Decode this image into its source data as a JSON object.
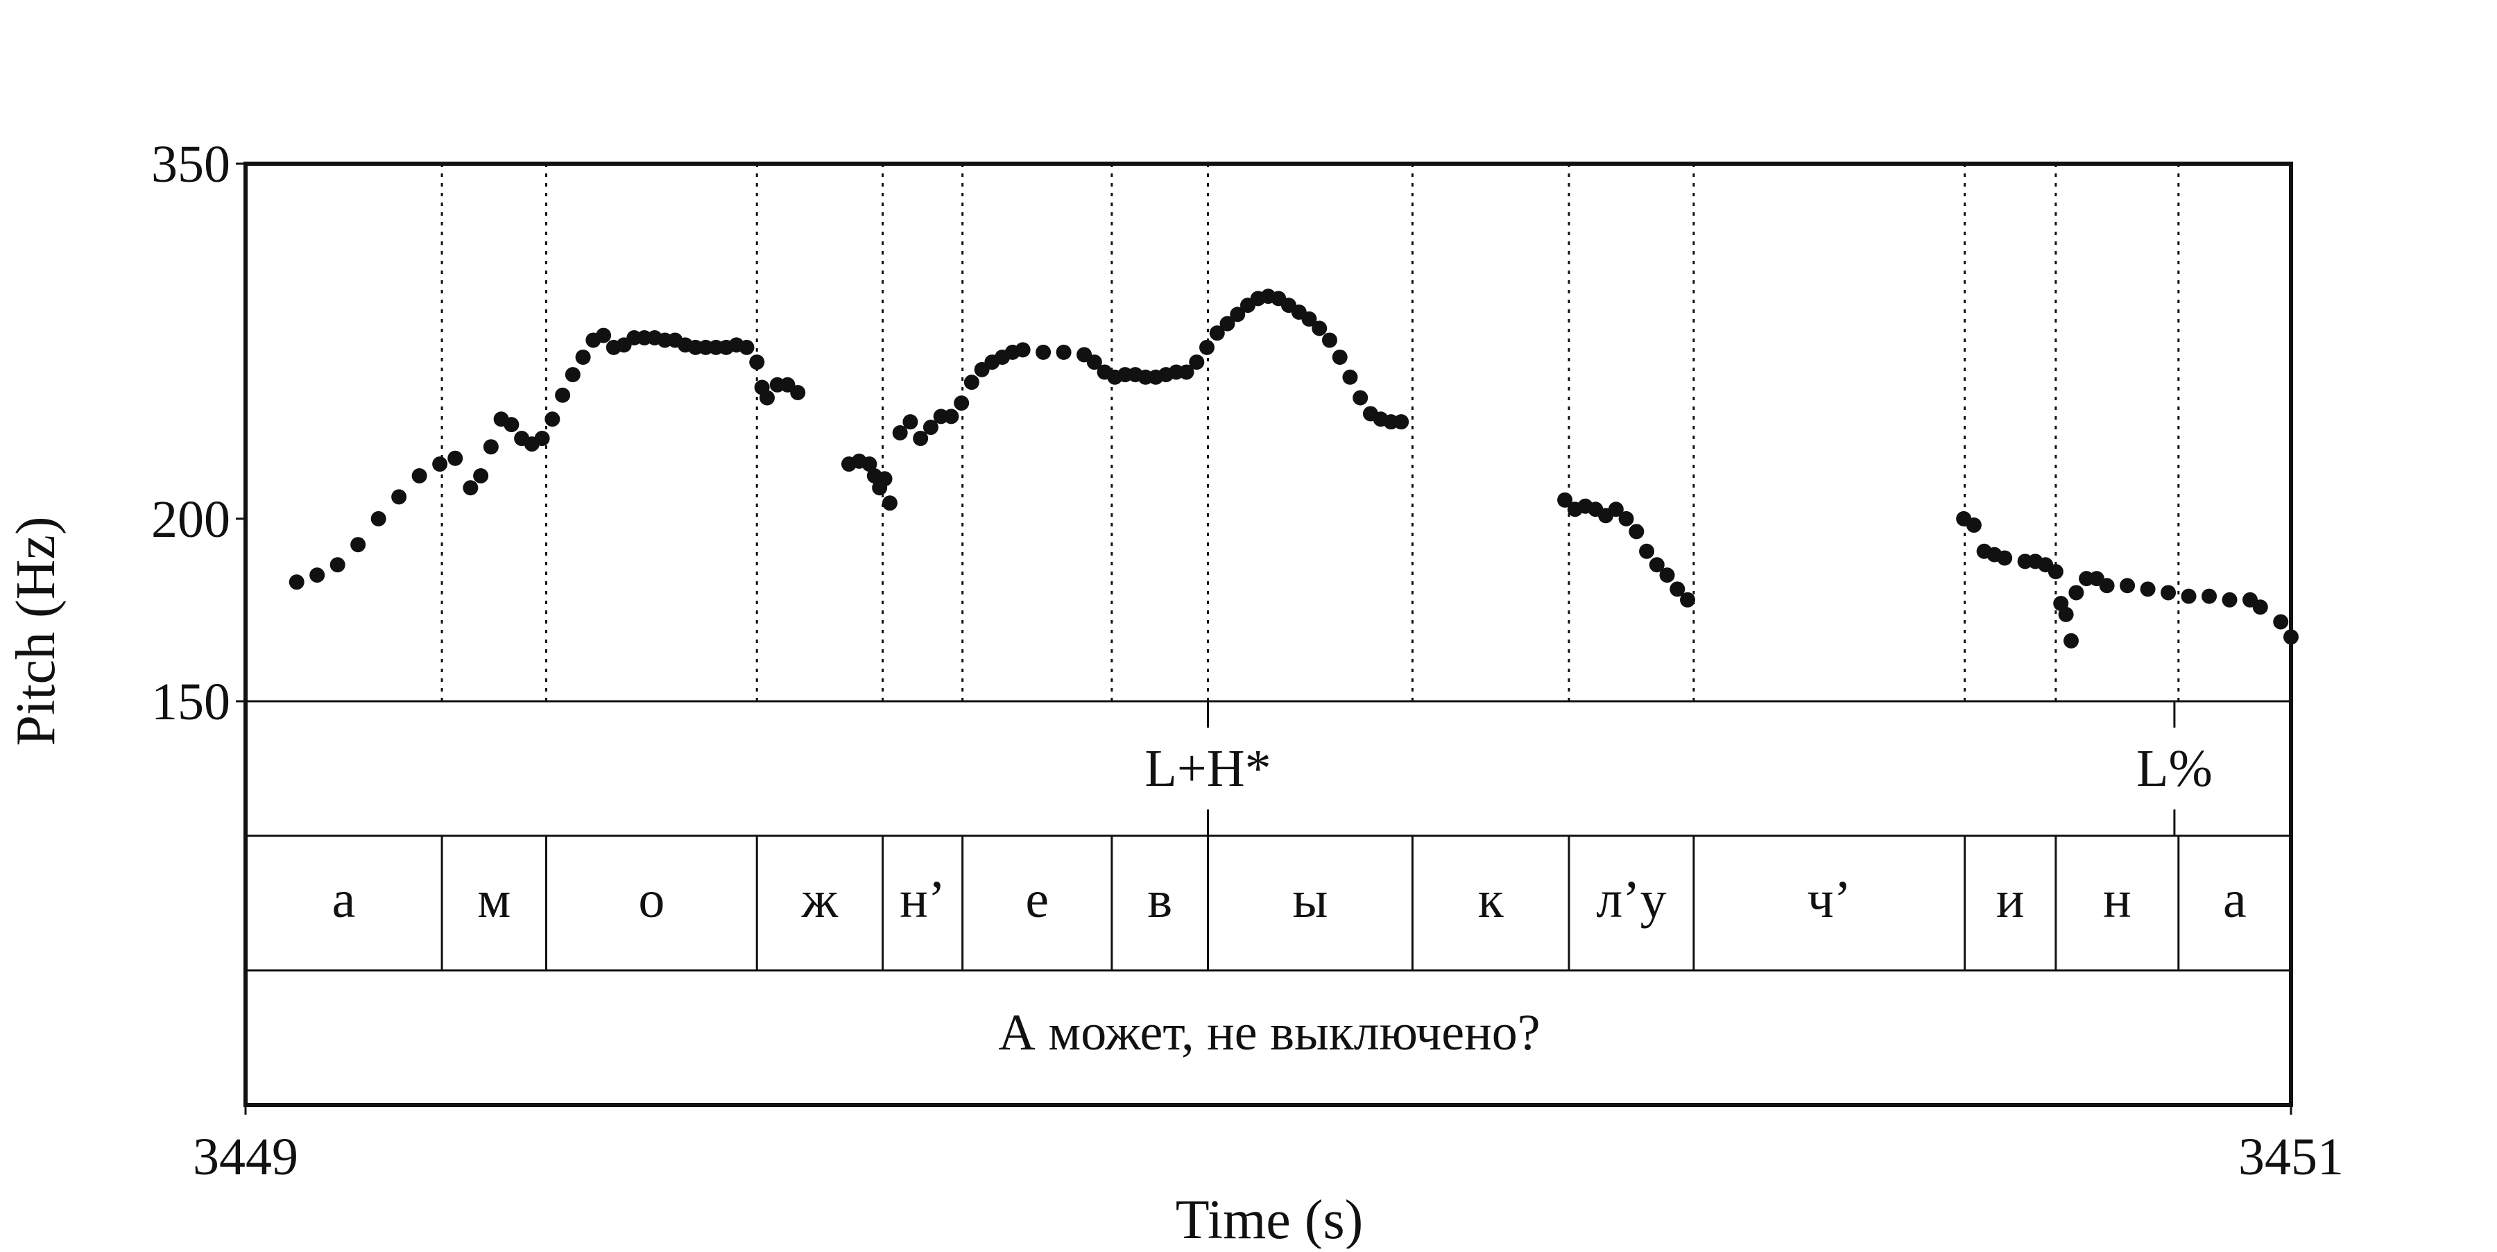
{
  "chart_data": {
    "type": "scatter",
    "xlabel": "Time (s)",
    "ylabel": "Pitch (Hz)",
    "xlim": [
      3449,
      3451
    ],
    "ylim": [
      150,
      350
    ],
    "y_scale": "log",
    "x_ticks": [
      "3449",
      "3451"
    ],
    "y_ticks": [
      "350",
      "200",
      "150"
    ],
    "grid": false,
    "colors": {
      "points": "#111111",
      "boundaries": "#111111",
      "frame": "#111111"
    },
    "tone_tier": {
      "marks": [
        {
          "time": 3449.941,
          "label": "L+H*"
        },
        {
          "time": 3450.886,
          "label": "L%"
        }
      ]
    },
    "segment_tier": {
      "boundaries": [
        3449.192,
        3449.294,
        3449.5,
        3449.623,
        3449.701,
        3449.847,
        3449.941,
        3450.141,
        3450.294,
        3450.416,
        3450.681,
        3450.77,
        3450.89
      ],
      "segments": [
        "а",
        "м",
        "о",
        "ж",
        "н’",
        "е",
        "в",
        "ы",
        "к",
        "л’у",
        "ч’",
        "и",
        "н",
        "а"
      ]
    },
    "sentence_tier": {
      "text": "А может, не выключено?"
    },
    "pitch_contours": [
      {
        "points": [
          [
            3449.05,
            181
          ],
          [
            3449.07,
            183
          ],
          [
            3449.09,
            186
          ],
          [
            3449.11,
            192
          ],
          [
            3449.13,
            200
          ],
          [
            3449.15,
            207
          ],
          [
            3449.17,
            214
          ],
          [
            3449.19,
            218
          ],
          [
            3449.205,
            220
          ],
          [
            3449.22,
            210
          ],
          [
            3449.23,
            214
          ],
          [
            3449.24,
            224
          ],
          [
            3449.25,
            234
          ],
          [
            3449.26,
            232
          ],
          [
            3449.27,
            227
          ],
          [
            3449.28,
            225
          ],
          [
            3449.29,
            227
          ],
          [
            3449.3,
            234
          ],
          [
            3449.31,
            243
          ],
          [
            3449.32,
            251
          ],
          [
            3449.33,
            258
          ],
          [
            3449.34,
            265
          ],
          [
            3449.35,
            267
          ],
          [
            3449.36,
            262
          ],
          [
            3449.37,
            263
          ],
          [
            3449.38,
            266
          ],
          [
            3449.39,
            266
          ],
          [
            3449.4,
            266
          ],
          [
            3449.41,
            265
          ],
          [
            3449.42,
            265
          ],
          [
            3449.43,
            263
          ],
          [
            3449.44,
            262
          ],
          [
            3449.45,
            262
          ],
          [
            3449.46,
            262
          ],
          [
            3449.47,
            262
          ],
          [
            3449.48,
            263
          ],
          [
            3449.49,
            262
          ],
          [
            3449.5,
            256
          ],
          [
            3449.505,
            246
          ],
          [
            3449.51,
            242
          ],
          [
            3449.52,
            247
          ],
          [
            3449.53,
            247
          ],
          [
            3449.54,
            244
          ]
        ]
      },
      {
        "points": [
          [
            3449.59,
            218
          ],
          [
            3449.6,
            219
          ],
          [
            3449.61,
            218
          ],
          [
            3449.615,
            214
          ],
          [
            3449.62,
            210
          ],
          [
            3449.625,
            213
          ],
          [
            3449.63,
            205
          ],
          [
            3449.64,
            229
          ],
          [
            3449.65,
            233
          ],
          [
            3449.66,
            227
          ],
          [
            3449.67,
            231
          ],
          [
            3449.68,
            235
          ],
          [
            3449.69,
            235
          ],
          [
            3449.7,
            240
          ],
          [
            3449.71,
            248
          ],
          [
            3449.72,
            253
          ],
          [
            3449.73,
            256
          ],
          [
            3449.74,
            258
          ],
          [
            3449.75,
            260
          ],
          [
            3449.76,
            261
          ],
          [
            3449.78,
            260
          ],
          [
            3449.8,
            260
          ],
          [
            3449.82,
            259
          ],
          [
            3449.83,
            256
          ],
          [
            3449.84,
            252
          ],
          [
            3449.85,
            250
          ],
          [
            3449.86,
            251
          ],
          [
            3449.87,
            251
          ],
          [
            3449.88,
            250
          ],
          [
            3449.89,
            250
          ],
          [
            3449.9,
            251
          ],
          [
            3449.91,
            252
          ],
          [
            3449.92,
            252
          ],
          [
            3449.93,
            256
          ],
          [
            3449.94,
            262
          ],
          [
            3449.95,
            268
          ],
          [
            3449.96,
            272
          ],
          [
            3449.97,
            276
          ],
          [
            3449.98,
            280
          ],
          [
            3449.99,
            283
          ],
          [
            3450.0,
            284
          ],
          [
            3450.01,
            283
          ],
          [
            3450.02,
            280
          ],
          [
            3450.03,
            277
          ],
          [
            3450.04,
            274
          ],
          [
            3450.05,
            270
          ],
          [
            3450.06,
            265
          ],
          [
            3450.07,
            258
          ],
          [
            3450.08,
            250
          ],
          [
            3450.09,
            242
          ],
          [
            3450.1,
            236
          ],
          [
            3450.11,
            234
          ],
          [
            3450.12,
            233
          ],
          [
            3450.13,
            233
          ]
        ]
      },
      {
        "points": [
          [
            3450.29,
            206
          ],
          [
            3450.3,
            203
          ],
          [
            3450.31,
            204
          ],
          [
            3450.32,
            203
          ],
          [
            3450.33,
            201
          ],
          [
            3450.34,
            203
          ],
          [
            3450.35,
            200
          ],
          [
            3450.36,
            196
          ],
          [
            3450.37,
            190
          ],
          [
            3450.38,
            186
          ],
          [
            3450.39,
            183
          ],
          [
            3450.4,
            179
          ],
          [
            3450.41,
            176
          ]
        ]
      },
      {
        "points": [
          [
            3450.68,
            200
          ],
          [
            3450.69,
            198
          ],
          [
            3450.7,
            190
          ],
          [
            3450.71,
            189
          ],
          [
            3450.72,
            188
          ],
          [
            3450.74,
            187
          ],
          [
            3450.75,
            187
          ],
          [
            3450.76,
            186
          ],
          [
            3450.77,
            184
          ],
          [
            3450.775,
            175
          ],
          [
            3450.78,
            172
          ],
          [
            3450.785,
            165
          ],
          [
            3450.79,
            178
          ],
          [
            3450.8,
            182
          ],
          [
            3450.81,
            182
          ],
          [
            3450.82,
            180
          ],
          [
            3450.84,
            180
          ],
          [
            3450.86,
            179
          ],
          [
            3450.88,
            178
          ],
          [
            3450.9,
            177
          ],
          [
            3450.92,
            177
          ],
          [
            3450.94,
            176
          ],
          [
            3450.96,
            176
          ],
          [
            3450.97,
            174
          ],
          [
            3450.99,
            170
          ],
          [
            3451.0,
            166
          ]
        ]
      }
    ]
  }
}
